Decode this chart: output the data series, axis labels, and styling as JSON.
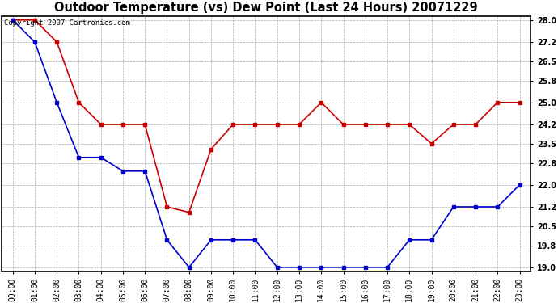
{
  "title": "Outdoor Temperature (vs) Dew Point (Last 24 Hours) 20071229",
  "copyright_text": "Copyright 2007 Cartronics.com",
  "x_labels": [
    "00:00",
    "01:00",
    "02:00",
    "03:00",
    "04:00",
    "05:00",
    "06:00",
    "07:00",
    "08:00",
    "09:00",
    "10:00",
    "11:00",
    "12:00",
    "13:00",
    "14:00",
    "15:00",
    "16:00",
    "17:00",
    "18:00",
    "19:00",
    "20:00",
    "21:00",
    "22:00",
    "23:00"
  ],
  "temp_data": [
    28.0,
    28.0,
    27.2,
    25.0,
    24.2,
    24.2,
    24.2,
    21.2,
    21.0,
    23.3,
    24.2,
    24.2,
    24.2,
    24.2,
    25.0,
    24.2,
    24.2,
    24.2,
    24.2,
    23.5,
    24.2,
    24.2,
    25.0,
    25.0
  ],
  "dew_data": [
    28.0,
    27.2,
    25.0,
    23.0,
    23.0,
    22.5,
    22.5,
    20.0,
    19.0,
    20.0,
    20.0,
    20.0,
    19.0,
    19.0,
    19.0,
    19.0,
    19.0,
    19.0,
    20.0,
    20.0,
    21.2,
    21.2,
    21.2,
    22.0
  ],
  "temp_color": "#cc0000",
  "dew_color": "#0000cc",
  "bg_color": "#ffffff",
  "plot_bg_color": "#ffffff",
  "grid_color": "#aaaaaa",
  "y_min": 19.0,
  "y_max": 28.0,
  "y_ticks": [
    19.0,
    19.8,
    20.5,
    21.2,
    22.0,
    22.8,
    23.5,
    24.2,
    25.0,
    25.8,
    26.5,
    27.2,
    28.0
  ],
  "title_fontsize": 10.5,
  "copyright_fontsize": 6.5,
  "tick_fontsize": 7,
  "marker": "s",
  "marker_size": 2.5,
  "line_width": 1.2
}
